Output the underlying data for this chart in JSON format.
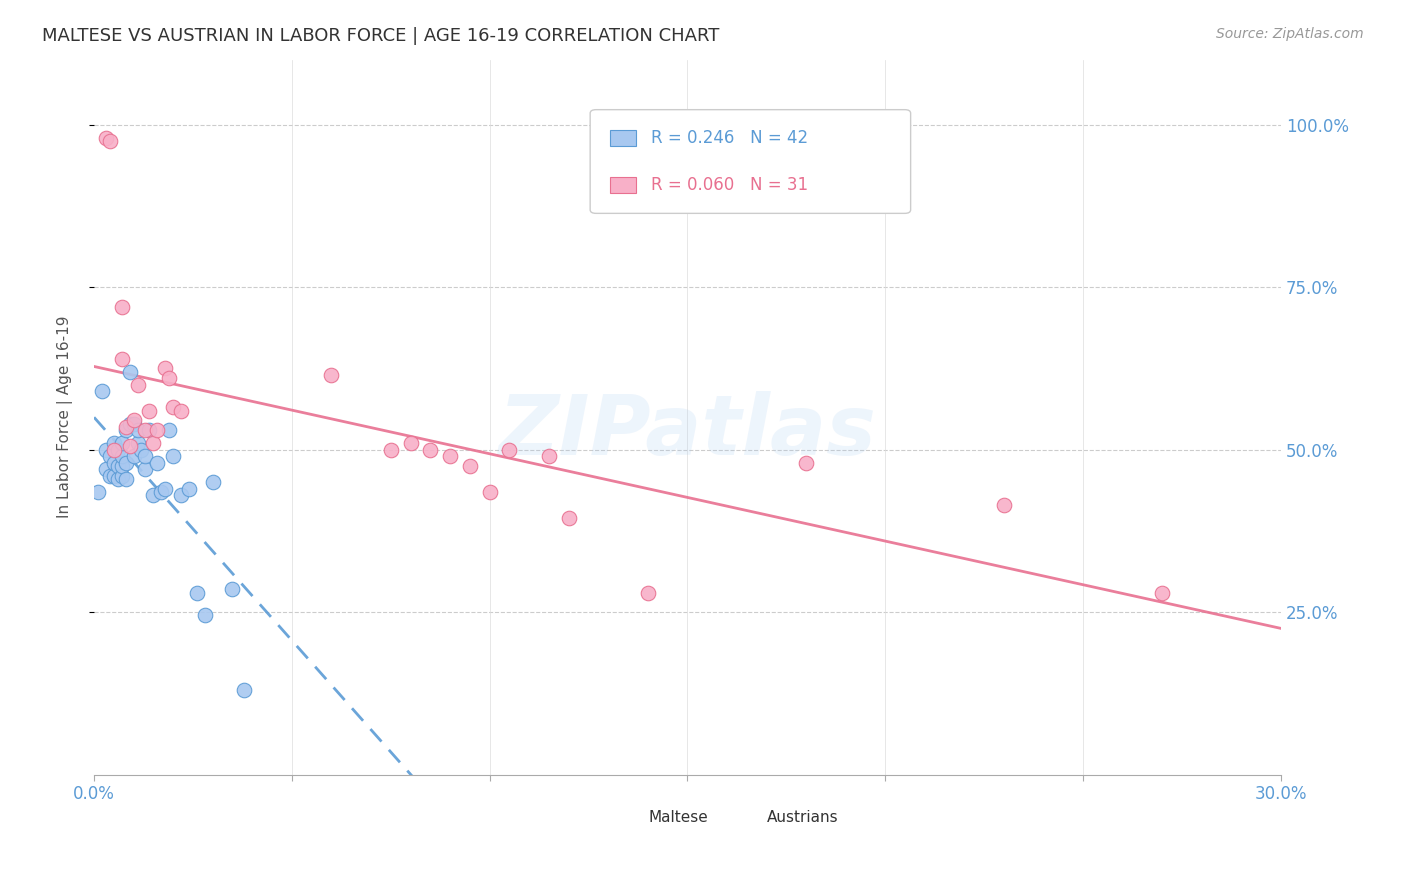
{
  "title": "MALTESE VS AUSTRIAN IN LABOR FORCE | AGE 16-19 CORRELATION CHART",
  "source": "Source: ZipAtlas.com",
  "ylabel": "In Labor Force | Age 16-19",
  "xlim": [
    0.0,
    0.3
  ],
  "ylim": [
    0.0,
    1.1
  ],
  "maltese_color": "#a8c8f0",
  "austrians_color": "#f8b0c8",
  "maltese_edge_color": "#5b9bd5",
  "austrians_edge_color": "#e87090",
  "maltese_line_color": "#5b9bd5",
  "austrians_line_color": "#e87090",
  "watermark": "ZIPatlas",
  "maltese_x": [
    0.001,
    0.002,
    0.003,
    0.003,
    0.004,
    0.004,
    0.005,
    0.005,
    0.005,
    0.006,
    0.006,
    0.006,
    0.007,
    0.007,
    0.007,
    0.007,
    0.008,
    0.008,
    0.008,
    0.009,
    0.009,
    0.01,
    0.01,
    0.011,
    0.011,
    0.012,
    0.013,
    0.013,
    0.014,
    0.015,
    0.016,
    0.017,
    0.018,
    0.019,
    0.02,
    0.022,
    0.024,
    0.026,
    0.028,
    0.03,
    0.035,
    0.038
  ],
  "maltese_y": [
    0.435,
    0.59,
    0.47,
    0.5,
    0.46,
    0.49,
    0.46,
    0.48,
    0.51,
    0.455,
    0.475,
    0.5,
    0.46,
    0.475,
    0.49,
    0.51,
    0.455,
    0.48,
    0.53,
    0.54,
    0.62,
    0.49,
    0.54,
    0.51,
    0.53,
    0.5,
    0.47,
    0.49,
    0.53,
    0.43,
    0.48,
    0.435,
    0.44,
    0.53,
    0.49,
    0.43,
    0.44,
    0.28,
    0.245,
    0.45,
    0.285,
    0.13
  ],
  "austrians_x": [
    0.003,
    0.004,
    0.005,
    0.007,
    0.007,
    0.008,
    0.009,
    0.01,
    0.011,
    0.013,
    0.014,
    0.015,
    0.016,
    0.018,
    0.019,
    0.02,
    0.022,
    0.06,
    0.075,
    0.08,
    0.085,
    0.09,
    0.095,
    0.1,
    0.105,
    0.115,
    0.12,
    0.14,
    0.18,
    0.23,
    0.27
  ],
  "austrians_y": [
    0.98,
    0.975,
    0.5,
    0.72,
    0.64,
    0.535,
    0.505,
    0.545,
    0.6,
    0.53,
    0.56,
    0.51,
    0.53,
    0.625,
    0.61,
    0.565,
    0.56,
    0.615,
    0.5,
    0.51,
    0.5,
    0.49,
    0.475,
    0.435,
    0.5,
    0.49,
    0.395,
    0.28,
    0.48,
    0.415,
    0.28
  ]
}
